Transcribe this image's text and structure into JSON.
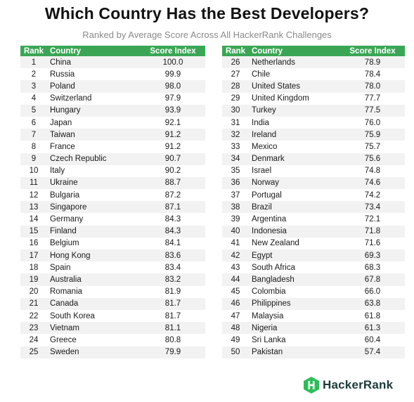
{
  "title": "Which Country Has the Best Developers?",
  "subtitle": "Ranked by Average Score Across All HackerRank Challenges",
  "columns": {
    "rank": "Rank",
    "country": "Country",
    "score": "Score Index"
  },
  "colors": {
    "header_green": "#3aa655",
    "stripe": "#f2f2f2",
    "logo_green": "#2ebd59"
  },
  "left_rows": [
    {
      "rank": "1",
      "country": "China",
      "score": "100.0"
    },
    {
      "rank": "2",
      "country": "Russia",
      "score": "99.9"
    },
    {
      "rank": "3",
      "country": "Poland",
      "score": "98.0"
    },
    {
      "rank": "4",
      "country": "Switzerland",
      "score": "97.9"
    },
    {
      "rank": "5",
      "country": "Hungary",
      "score": "93.9"
    },
    {
      "rank": "6",
      "country": "Japan",
      "score": "92.1"
    },
    {
      "rank": "7",
      "country": "Taiwan",
      "score": "91.2"
    },
    {
      "rank": "8",
      "country": "France",
      "score": "91.2"
    },
    {
      "rank": "9",
      "country": "Czech Republic",
      "score": "90.7"
    },
    {
      "rank": "10",
      "country": "Italy",
      "score": "90.2"
    },
    {
      "rank": "11",
      "country": "Ukraine",
      "score": "88.7"
    },
    {
      "rank": "12",
      "country": "Bulgaria",
      "score": "87.2"
    },
    {
      "rank": "13",
      "country": "Singapore",
      "score": "87.1"
    },
    {
      "rank": "14",
      "country": "Germany",
      "score": "84.3"
    },
    {
      "rank": "15",
      "country": "Finland",
      "score": "84.3"
    },
    {
      "rank": "16",
      "country": "Belgium",
      "score": "84.1"
    },
    {
      "rank": "17",
      "country": "Hong Kong",
      "score": "83.6"
    },
    {
      "rank": "18",
      "country": "Spain",
      "score": "83.4"
    },
    {
      "rank": "19",
      "country": "Australia",
      "score": "83.2"
    },
    {
      "rank": "20",
      "country": "Romania",
      "score": "81.9"
    },
    {
      "rank": "21",
      "country": "Canada",
      "score": "81.7"
    },
    {
      "rank": "22",
      "country": "South Korea",
      "score": "81.7"
    },
    {
      "rank": "23",
      "country": "Vietnam",
      "score": "81.1"
    },
    {
      "rank": "24",
      "country": "Greece",
      "score": "80.8"
    },
    {
      "rank": "25",
      "country": "Sweden",
      "score": "79.9"
    }
  ],
  "right_rows": [
    {
      "rank": "26",
      "country": "Netherlands",
      "score": "78.9"
    },
    {
      "rank": "27",
      "country": "Chile",
      "score": "78.4"
    },
    {
      "rank": "28",
      "country": "United States",
      "score": "78.0"
    },
    {
      "rank": "29",
      "country": "United Kingdom",
      "score": "77.7"
    },
    {
      "rank": "30",
      "country": "Turkey",
      "score": "77.5"
    },
    {
      "rank": "31",
      "country": "India",
      "score": "76.0"
    },
    {
      "rank": "32",
      "country": "Ireland",
      "score": "75.9"
    },
    {
      "rank": "33",
      "country": "Mexico",
      "score": "75.7"
    },
    {
      "rank": "34",
      "country": "Denmark",
      "score": "75.6"
    },
    {
      "rank": "35",
      "country": "Israel",
      "score": "74.8"
    },
    {
      "rank": "36",
      "country": "Norway",
      "score": "74.6"
    },
    {
      "rank": "37",
      "country": "Portugal",
      "score": "74.2"
    },
    {
      "rank": "38",
      "country": "Brazil",
      "score": "73.4"
    },
    {
      "rank": "39",
      "country": "Argentina",
      "score": "72.1"
    },
    {
      "rank": "40",
      "country": "Indonesia",
      "score": "71.8"
    },
    {
      "rank": "41",
      "country": "New Zealand",
      "score": "71.6"
    },
    {
      "rank": "42",
      "country": "Egypt",
      "score": "69.3"
    },
    {
      "rank": "43",
      "country": "South Africa",
      "score": "68.3"
    },
    {
      "rank": "44",
      "country": "Bangladesh",
      "score": "67.8"
    },
    {
      "rank": "45",
      "country": "Colombia",
      "score": "66.0"
    },
    {
      "rank": "46",
      "country": "Philippines",
      "score": "63.8"
    },
    {
      "rank": "47",
      "country": "Malaysia",
      "score": "61.8"
    },
    {
      "rank": "48",
      "country": "Nigeria",
      "score": "61.3"
    },
    {
      "rank": "49",
      "country": "Sri Lanka",
      "score": "60.4"
    },
    {
      "rank": "50",
      "country": "Pakistan",
      "score": "57.4"
    }
  ],
  "logo": {
    "text": "HackerRank",
    "icon": "hackerrank-hexagon-icon"
  }
}
